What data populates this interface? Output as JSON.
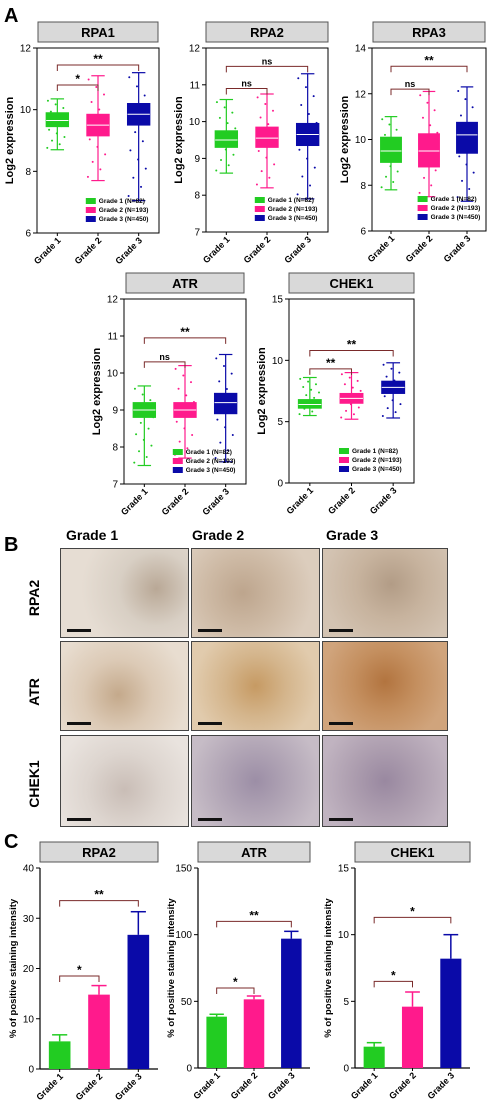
{
  "panel_letters": [
    "A",
    "B",
    "C"
  ],
  "colors": {
    "grade1": "#22cc22",
    "grade2": "#ff1a8c",
    "grade3": "#0a0aa8"
  },
  "chart_data": [
    {
      "id": "rpa1",
      "type": "box",
      "title": "RPA1",
      "ylabel": "Log2 expression",
      "categories": [
        "Grade 1",
        "Grade 2",
        "Grade 3"
      ],
      "ylim": [
        6,
        12
      ],
      "yticks": [
        6,
        8,
        10,
        12
      ],
      "legend": [
        "Grade 1 (N=82)",
        "Grade 2 (N=193)",
        "Grade 3 (N=450)"
      ],
      "legend_position": "bottom-right",
      "series": [
        {
          "name": "Grade 1 (N=82)",
          "min": 8.7,
          "q1": 9.45,
          "median": 9.65,
          "q3": 9.9,
          "max": 10.35
        },
        {
          "name": "Grade 2 (N=193)",
          "min": 7.7,
          "q1": 9.15,
          "median": 9.5,
          "q3": 9.85,
          "max": 11.1
        },
        {
          "name": "Grade 3 (N=450)",
          "min": 7.05,
          "q1": 9.5,
          "median": 9.85,
          "q3": 10.2,
          "max": 11.2
        }
      ],
      "annotations": [
        {
          "pair": [
            1,
            2
          ],
          "label": "*",
          "y": 10.8
        },
        {
          "pair": [
            1,
            3
          ],
          "label": "**",
          "y": 11.45
        }
      ]
    },
    {
      "id": "rpa2",
      "type": "box",
      "title": "RPA2",
      "ylabel": "Log2 expression",
      "categories": [
        "Grade 1",
        "Grade 2",
        "Grade 3"
      ],
      "ylim": [
        7,
        12
      ],
      "yticks": [
        7,
        8,
        9,
        10,
        11,
        12
      ],
      "legend": [
        "Grade 1 (N=82)",
        "Grade 2 (N=193)",
        "Grade 3 (N=450)"
      ],
      "legend_position": "bottom-right",
      "series": [
        {
          "name": "Grade 1 (N=82)",
          "min": 8.6,
          "q1": 9.3,
          "median": 9.5,
          "q3": 9.75,
          "max": 10.6
        },
        {
          "name": "Grade 2 (N=193)",
          "min": 8.2,
          "q1": 9.3,
          "median": 9.55,
          "q3": 9.85,
          "max": 10.75
        },
        {
          "name": "Grade 3 (N=450)",
          "min": 7.9,
          "q1": 9.35,
          "median": 9.65,
          "q3": 9.95,
          "max": 11.3
        }
      ],
      "annotations": [
        {
          "pair": [
            1,
            2
          ],
          "label": "ns",
          "y": 10.9
        },
        {
          "pair": [
            1,
            3
          ],
          "label": "ns",
          "y": 11.5
        }
      ]
    },
    {
      "id": "rpa3",
      "type": "box",
      "title": "RPA3",
      "ylabel": "Log2 expression",
      "categories": [
        "Grade 1",
        "Grade 2",
        "Grade 3"
      ],
      "ylim": [
        6,
        14
      ],
      "yticks": [
        6,
        8,
        10,
        12,
        14
      ],
      "legend": [
        "Grade 1 (N=82)",
        "Grade 2 (N=193)",
        "Grade 3 (N=450)"
      ],
      "legend_position": "bottom-right",
      "series": [
        {
          "name": "Grade 1 (N=82)",
          "min": 7.8,
          "q1": 9.0,
          "median": 9.5,
          "q3": 10.1,
          "max": 11.0
        },
        {
          "name": "Grade 2 (N=193)",
          "min": 7.5,
          "q1": 8.8,
          "median": 9.5,
          "q3": 10.25,
          "max": 12.1
        },
        {
          "name": "Grade 3 (N=450)",
          "min": 7.3,
          "q1": 9.4,
          "median": 10.2,
          "q3": 10.75,
          "max": 12.3
        }
      ],
      "annotations": [
        {
          "pair": [
            1,
            2
          ],
          "label": "ns",
          "y": 12.2
        },
        {
          "pair": [
            1,
            3
          ],
          "label": "**",
          "y": 13.2
        }
      ]
    },
    {
      "id": "atr",
      "type": "box",
      "title": "ATR",
      "ylabel": "Log2 expression",
      "categories": [
        "Grade 1",
        "Grade 2",
        "Grade 3"
      ],
      "ylim": [
        7,
        12
      ],
      "yticks": [
        7,
        8,
        9,
        10,
        11,
        12
      ],
      "legend": [
        "Grade 1 (N=82)",
        "Grade 2 (N=193)",
        "Grade 3 (N=450)"
      ],
      "legend_position": "bottom-right",
      "series": [
        {
          "name": "Grade 1 (N=82)",
          "min": 7.5,
          "q1": 8.8,
          "median": 9.0,
          "q3": 9.2,
          "max": 9.65
        },
        {
          "name": "Grade 2 (N=193)",
          "min": 7.7,
          "q1": 8.8,
          "median": 9.0,
          "q3": 9.2,
          "max": 10.2
        },
        {
          "name": "Grade 3 (N=450)",
          "min": 7.6,
          "q1": 8.9,
          "median": 9.2,
          "q3": 9.45,
          "max": 10.5
        }
      ],
      "annotations": [
        {
          "pair": [
            1,
            2
          ],
          "label": "ns",
          "y": 10.3
        },
        {
          "pair": [
            1,
            3
          ],
          "label": "**",
          "y": 10.95
        }
      ]
    },
    {
      "id": "chek1",
      "type": "box",
      "title": "CHEK1",
      "ylabel": "Log2 expression",
      "categories": [
        "Grade 1",
        "Grade 2",
        "Grade 3"
      ],
      "ylim": [
        0,
        15
      ],
      "yticks": [
        0,
        5,
        10,
        15
      ],
      "legend": [
        "Grade 1 (N=82)",
        "Grade 2 (N=193)",
        "Grade 3 (N=450)"
      ],
      "legend_position": "bottom-right",
      "series": [
        {
          "name": "Grade 1 (N=82)",
          "min": 5.5,
          "q1": 6.1,
          "median": 6.4,
          "q3": 6.8,
          "max": 8.6
        },
        {
          "name": "Grade 2 (N=193)",
          "min": 5.2,
          "q1": 6.5,
          "median": 6.9,
          "q3": 7.3,
          "max": 9.0
        },
        {
          "name": "Grade 3 (N=450)",
          "min": 5.3,
          "q1": 7.3,
          "median": 7.8,
          "q3": 8.3,
          "max": 9.8
        }
      ],
      "annotations": [
        {
          "pair": [
            1,
            2
          ],
          "label": "**",
          "y": 9.3
        },
        {
          "pair": [
            1,
            3
          ],
          "label": "**",
          "y": 10.8
        }
      ]
    },
    {
      "id": "c_rpa2",
      "type": "bar",
      "title": "RPA2",
      "ylabel": "% of positive staining  intensity",
      "categories": [
        "Grade 1",
        "Grade 2",
        "Grade 3"
      ],
      "ylim": [
        0,
        40
      ],
      "yticks": [
        0,
        10,
        20,
        30,
        40
      ],
      "values": [
        5.5,
        14.8,
        26.7
      ],
      "errors": [
        1.3,
        1.8,
        4.6
      ],
      "annotations": [
        {
          "pair": [
            1,
            2
          ],
          "label": "*",
          "y": 18.5
        },
        {
          "pair": [
            1,
            3
          ],
          "label": "**",
          "y": 33.5
        }
      ]
    },
    {
      "id": "c_atr",
      "type": "bar",
      "title": "ATR",
      "ylabel": "% of positive staining  intensity",
      "categories": [
        "Grade 1",
        "Grade 2",
        "Grade 3"
      ],
      "ylim": [
        0,
        150
      ],
      "yticks": [
        0,
        50,
        100,
        150
      ],
      "values": [
        38.5,
        51.5,
        97
      ],
      "errors": [
        1.8,
        2.5,
        5.5
      ],
      "annotations": [
        {
          "pair": [
            1,
            2
          ],
          "label": "*",
          "y": 60
        },
        {
          "pair": [
            1,
            3
          ],
          "label": "**",
          "y": 110
        }
      ]
    },
    {
      "id": "c_chek1",
      "type": "bar",
      "title": "CHEK1",
      "ylabel": "% of positive staining  intensity",
      "categories": [
        "Grade 1",
        "Grade 2",
        "Grade 3"
      ],
      "ylim": [
        0,
        15
      ],
      "yticks": [
        0,
        5,
        10,
        15
      ],
      "values": [
        1.6,
        4.6,
        8.2
      ],
      "errors": [
        0.3,
        1.1,
        1.8
      ],
      "annotations": [
        {
          "pair": [
            1,
            2
          ],
          "label": "*",
          "y": 6.5
        },
        {
          "pair": [
            1,
            3
          ],
          "label": "*",
          "y": 11.3
        }
      ]
    }
  ],
  "ihc": {
    "columns": [
      "Grade 1",
      "Grade 2",
      "Grade 3"
    ],
    "rows": [
      "RPA2",
      "ATR",
      "CHEK1"
    ]
  }
}
